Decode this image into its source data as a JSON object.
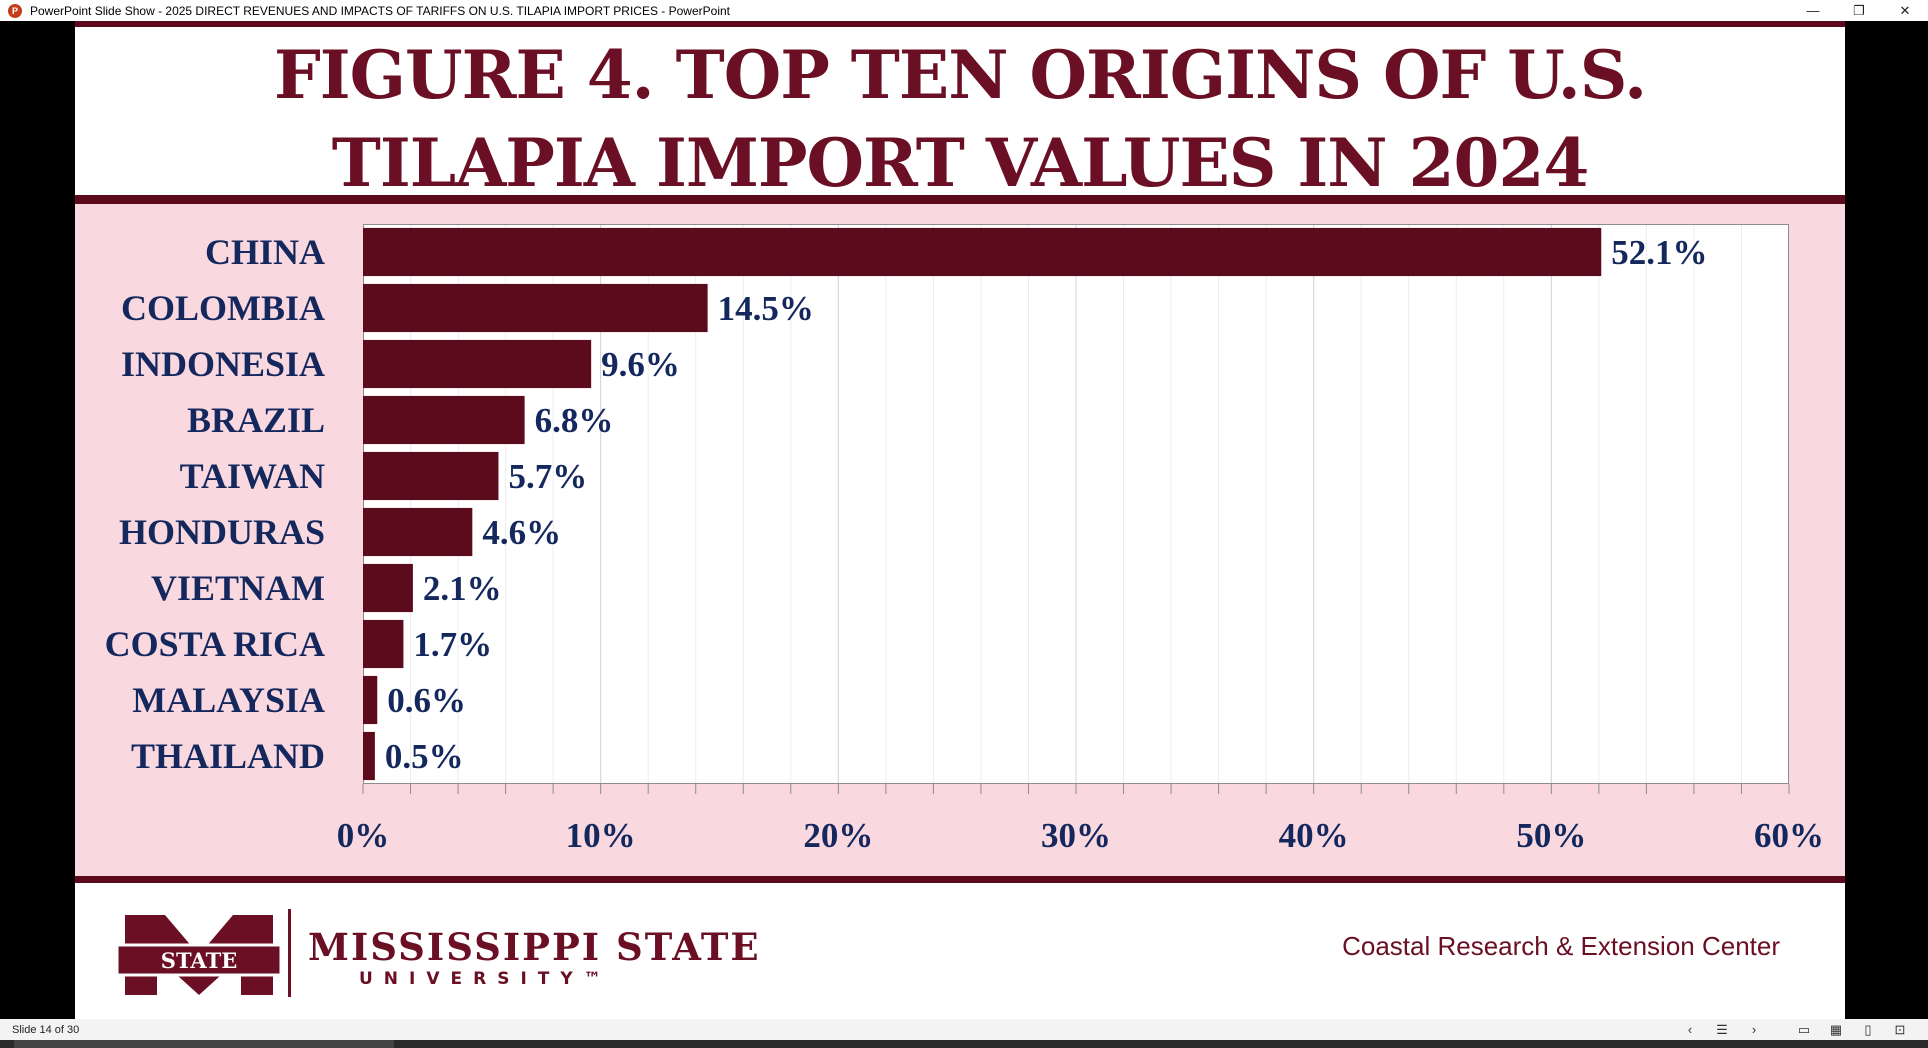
{
  "window": {
    "title": "PowerPoint Slide Show  -  2025 DIRECT REVENUES AND IMPACTS OF TARIFFS ON U.S. TILAPIA IMPORT PRICES - PowerPoint",
    "app_icon_letter": "P",
    "minimize_glyph": "—",
    "restore_glyph": "❐",
    "close_glyph": "✕"
  },
  "slide": {
    "title_line1": "FIGURE 4. TOP TEN ORIGINS OF U.S.",
    "title_line2": "TILAPIA IMPORT VALUES IN 2024"
  },
  "chart_data": {
    "type": "bar",
    "orientation": "horizontal",
    "categories": [
      "CHINA",
      "COLOMBIA",
      "INDONESIA",
      "BRAZIL",
      "TAIWAN",
      "HONDURAS",
      "VIETNAM",
      "COSTA RICA",
      "MALAYSIA",
      "THAILAND"
    ],
    "values": [
      52.1,
      14.5,
      9.6,
      6.8,
      5.7,
      4.6,
      2.1,
      1.7,
      0.6,
      0.5
    ],
    "data_labels": [
      "52.1%",
      "14.5%",
      "9.6%",
      "6.8%",
      "5.7%",
      "4.6%",
      "2.1%",
      "1.7%",
      "0.6%",
      "0.5%"
    ],
    "xlim": [
      0,
      60
    ],
    "x_ticks": [
      0,
      10,
      20,
      30,
      40,
      50,
      60
    ],
    "x_tick_labels": [
      "0%",
      "10%",
      "20%",
      "30%",
      "40%",
      "50%",
      "60%"
    ],
    "minor_step": 2,
    "bar_color": "#5c0b1c",
    "label_color": "#15285e",
    "title": "FIGURE 4. TOP TEN ORIGINS OF U.S. TILAPIA IMPORT VALUES IN 2024",
    "xlabel": "",
    "ylabel": ""
  },
  "footer": {
    "university_name": "MISSISSIPPI STATE",
    "university_sub": "UNIVERSITY™",
    "logo_badge_text": "STATE",
    "center_name": "Coastal Research & Extension Center"
  },
  "statusbar": {
    "slide_count": "Slide 14 of 30",
    "prev_glyph": "‹",
    "menu_glyph": "☰",
    "next_glyph": "›",
    "normal_view_glyph": "▭",
    "sorter_view_glyph": "▦",
    "reading_view_glyph": "▯",
    "slideshow_glyph": "⊡"
  },
  "colors": {
    "maroon": "#5c0b1c",
    "title_maroon": "#6a0f24",
    "panel_pink": "#f9d9df",
    "navy": "#15285e"
  }
}
